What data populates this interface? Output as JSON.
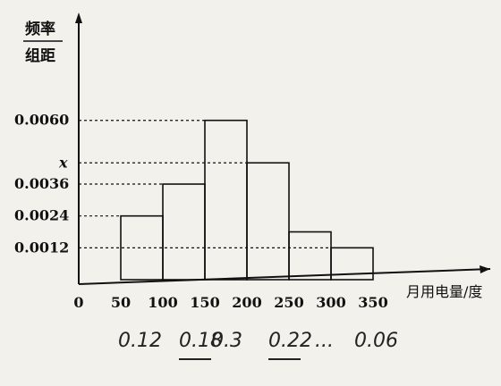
{
  "chart_data": {
    "type": "bar",
    "ylabel_numerator": "频率",
    "ylabel_denominator": "组距",
    "xlabel": "月用电量/度",
    "x_ticks": [
      "0",
      "50",
      "100",
      "150",
      "200",
      "250",
      "300",
      "350"
    ],
    "y_ticks": [
      {
        "label": "0.0060",
        "value": 0.006
      },
      {
        "label": "x",
        "value": 0.0044
      },
      {
        "label": "0.0036",
        "value": 0.0036
      },
      {
        "label": "0.0024",
        "value": 0.0024
      },
      {
        "label": "0.0012",
        "value": 0.0012
      }
    ],
    "bins": [
      {
        "start": 50,
        "end": 100,
        "value": 0.0024
      },
      {
        "start": 100,
        "end": 150,
        "value": 0.0036
      },
      {
        "start": 150,
        "end": 200,
        "value": 0.006
      },
      {
        "start": 200,
        "end": 250,
        "value": 0.0044
      },
      {
        "start": 250,
        "end": 300,
        "value": 0.0018
      },
      {
        "start": 300,
        "end": 350,
        "value": 0.0012
      }
    ],
    "xlim": [
      0,
      350
    ],
    "ylim": [
      0,
      0.0068
    ]
  },
  "handwritten_notes": [
    "0.12",
    "0.18",
    "0.3",
    "0.22",
    "...",
    "0.06"
  ]
}
